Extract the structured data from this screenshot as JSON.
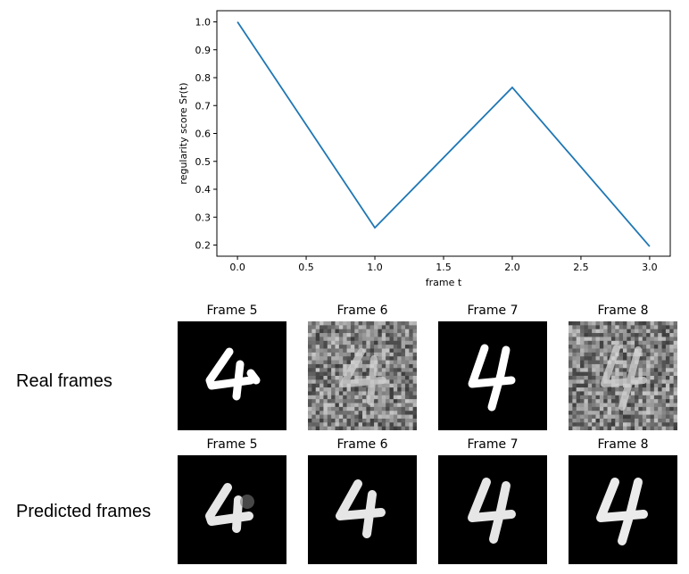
{
  "chart_data": {
    "type": "line",
    "title": "",
    "xlabel": "frame t",
    "ylabel": "regularity score Sr(t)",
    "x": [
      0,
      1,
      2,
      3
    ],
    "series": [
      {
        "values": [
          1.0,
          0.262,
          0.765,
          0.195
        ],
        "color": "#1f77b4"
      }
    ],
    "xlim": [
      -0.15,
      3.15
    ],
    "ylim": [
      0.16,
      1.04
    ],
    "xticks": [
      0.0,
      0.5,
      1.0,
      1.5,
      2.0,
      2.5,
      3.0
    ],
    "xtick_labels": [
      "0.0",
      "0.5",
      "1.0",
      "1.5",
      "2.0",
      "2.5",
      "3.0"
    ],
    "yticks": [
      0.2,
      0.3,
      0.4,
      0.5,
      0.6,
      0.7,
      0.8,
      0.9,
      1.0
    ],
    "ytick_labels": [
      "0.2",
      "0.3",
      "0.4",
      "0.5",
      "0.6",
      "0.7",
      "0.8",
      "0.9",
      "1.0"
    ],
    "grid": false
  },
  "rows": {
    "real_label": "Real frames",
    "predicted_label": "Predicted frames"
  },
  "frames": {
    "real_titles": [
      "Frame 5",
      "Frame 6",
      "Frame 7",
      "Frame 8"
    ],
    "predicted_titles": [
      "Frame 5",
      "Frame 6",
      "Frame 7",
      "Frame 8"
    ],
    "real_noisy": [
      false,
      true,
      false,
      true
    ]
  },
  "colors": {
    "line": "#1f77b4",
    "frame_bg": "#000000",
    "noise_bg": "#7d7d7d"
  }
}
